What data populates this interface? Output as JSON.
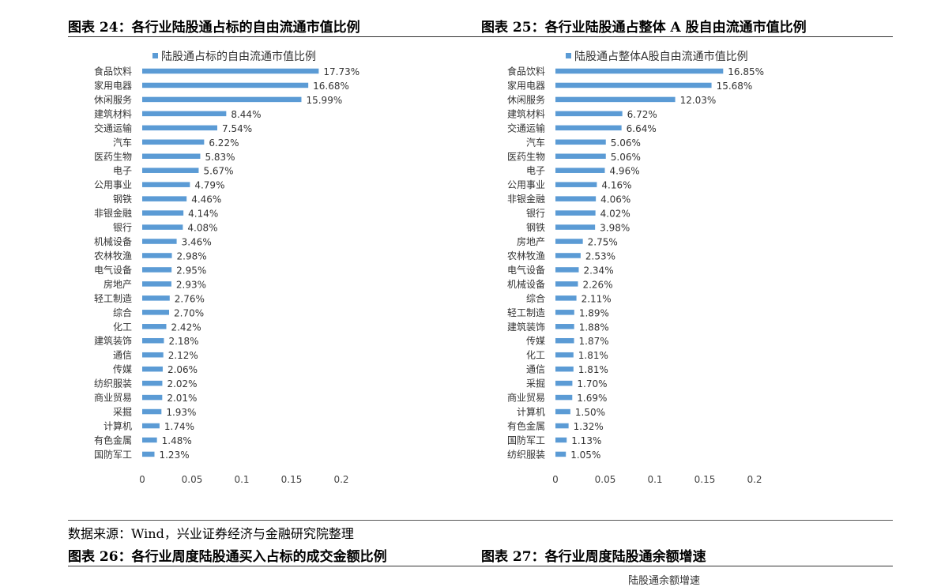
{
  "fig24_title": "图表 24：各行业陆股通占标的自由流通市值比例",
  "fig25_title": "图表 25：各行业陆股通占整体 A 股自由流通市值比例",
  "source": "数据来源：Wind，兴业证券经济与金融研究院整理",
  "fig26_title": "图表 26：各行业周度陆股通买入占标的成交金额比例",
  "fig27_title": "图表 27：各行业周度陆股通余额增速",
  "fig27_partial_legend": "陆股通余额增速",
  "colors": {
    "bar": "#5B9BD5"
  },
  "chart_data": [
    {
      "type": "bar",
      "orientation": "horizontal",
      "series": [
        {
          "name": "陆股通占标的自由流通市值比例"
        }
      ],
      "categories": [
        "食品饮料",
        "家用电器",
        "休闲服务",
        "建筑材料",
        "交通运输",
        "汽车",
        "医药生物",
        "电子",
        "公用事业",
        "钢铁",
        "非银金融",
        "银行",
        "机械设备",
        "农林牧渔",
        "电气设备",
        "房地产",
        "轻工制造",
        "综合",
        "化工",
        "建筑装饰",
        "通信",
        "传媒",
        "纺织服装",
        "商业贸易",
        "采掘",
        "计算机",
        "有色金属",
        "国防军工"
      ],
      "values": [
        0.1773,
        0.1668,
        0.1599,
        0.0844,
        0.0754,
        0.0622,
        0.0583,
        0.0567,
        0.0479,
        0.0446,
        0.0414,
        0.0408,
        0.0346,
        0.0298,
        0.0295,
        0.0293,
        0.0276,
        0.027,
        0.0242,
        0.0218,
        0.0212,
        0.0206,
        0.0202,
        0.0201,
        0.0193,
        0.0174,
        0.0148,
        0.0123
      ],
      "data_labels": [
        "17.73%",
        "16.68%",
        "15.99%",
        "8.44%",
        "7.54%",
        "6.22%",
        "5.83%",
        "5.67%",
        "4.79%",
        "4.46%",
        "4.14%",
        "4.08%",
        "3.46%",
        "2.98%",
        "2.95%",
        "2.93%",
        "2.76%",
        "2.70%",
        "2.42%",
        "2.18%",
        "2.12%",
        "2.06%",
        "2.02%",
        "2.01%",
        "1.93%",
        "1.74%",
        "1.48%",
        "1.23%"
      ],
      "xlim": [
        0,
        0.2
      ],
      "x_ticks": [
        "0",
        "0.05",
        "0.1",
        "0.15",
        "0.2"
      ],
      "legend": "top",
      "grid": false
    },
    {
      "type": "bar",
      "orientation": "horizontal",
      "series": [
        {
          "name": "陆股通占整体A股自由流通市值比例"
        }
      ],
      "categories": [
        "食品饮料",
        "家用电器",
        "休闲服务",
        "建筑材料",
        "交通运输",
        "汽车",
        "医药生物",
        "电子",
        "公用事业",
        "非银金融",
        "银行",
        "钢铁",
        "房地产",
        "农林牧渔",
        "电气设备",
        "机械设备",
        "综合",
        "轻工制造",
        "建筑装饰",
        "传媒",
        "化工",
        "通信",
        "采掘",
        "商业贸易",
        "计算机",
        "有色金属",
        "国防军工",
        "纺织服装"
      ],
      "values": [
        0.1685,
        0.1568,
        0.1203,
        0.0672,
        0.0664,
        0.0506,
        0.0506,
        0.0496,
        0.0416,
        0.0406,
        0.0402,
        0.0398,
        0.0275,
        0.0253,
        0.0234,
        0.0226,
        0.0211,
        0.0189,
        0.0188,
        0.0187,
        0.0181,
        0.0181,
        0.017,
        0.0169,
        0.015,
        0.0132,
        0.0113,
        0.0105
      ],
      "data_labels": [
        "16.85%",
        "15.68%",
        "12.03%",
        "6.72%",
        "6.64%",
        "5.06%",
        "5.06%",
        "4.96%",
        "4.16%",
        "4.06%",
        "4.02%",
        "3.98%",
        "2.75%",
        "2.53%",
        "2.34%",
        "2.26%",
        "2.11%",
        "1.89%",
        "1.88%",
        "1.87%",
        "1.81%",
        "1.81%",
        "1.70%",
        "1.69%",
        "1.50%",
        "1.32%",
        "1.13%",
        "1.05%"
      ],
      "xlim": [
        0,
        0.2
      ],
      "x_ticks": [
        "0",
        "0.05",
        "0.1",
        "0.15",
        "0.2"
      ],
      "legend": "top",
      "grid": false
    }
  ]
}
